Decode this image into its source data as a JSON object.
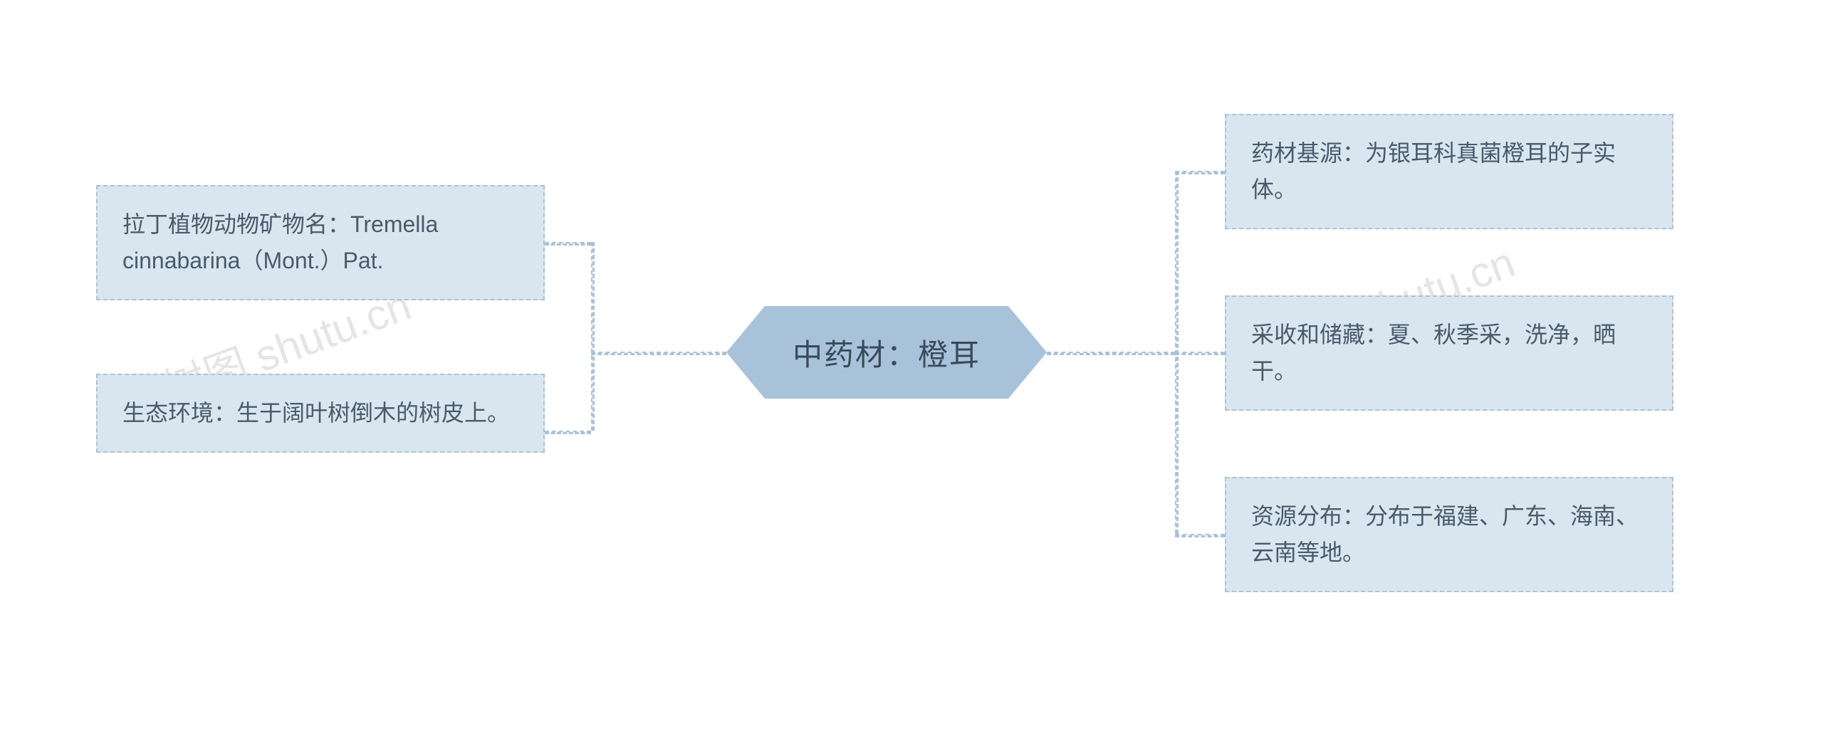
{
  "diagram": {
    "type": "mindmap",
    "center": {
      "label": "中药材：橙耳",
      "bg_color": "#a8c3d9",
      "text_color": "#3a4a5a",
      "fontsize": 42
    },
    "left_nodes": [
      {
        "text": "拉丁植物动物矿物名：Tremella cinnabarina（Mont.）Pat."
      },
      {
        "text": "生态环境：生于阔叶树倒木的树皮上。"
      }
    ],
    "right_nodes": [
      {
        "text": "药材基源：为银耳科真菌橙耳的子实体。"
      },
      {
        "text": "采收和储藏：夏、秋季采，洗净，晒干。"
      },
      {
        "text": "资源分布：分布于福建、广东、海南、云南等地。"
      }
    ],
    "node_style": {
      "bg_color": "#dae6ef",
      "border_color": "#a8c3d9",
      "border_style": "dashed",
      "text_color": "#4a5a6a",
      "fontsize": 32
    },
    "connector_color": "#a8c3d9",
    "background_color": "#ffffff",
    "watermark": "树图 shutu.cn"
  }
}
